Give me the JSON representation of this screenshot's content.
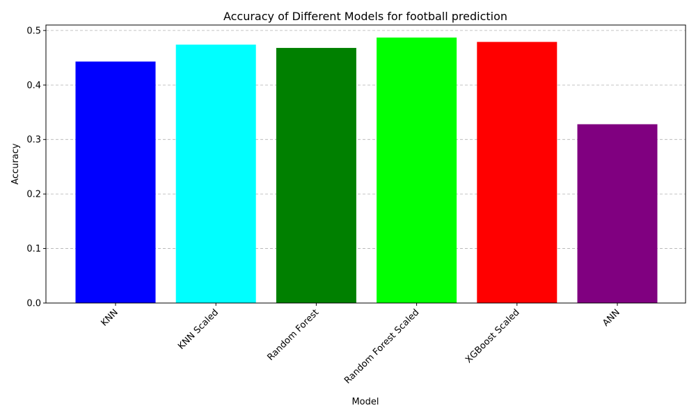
{
  "chart_data": {
    "type": "bar",
    "title": "Accuracy of Different Models for football prediction",
    "xlabel": "Model",
    "ylabel": "Accuracy",
    "categories": [
      "KNN",
      "KNN Scaled",
      "Random Forest",
      "Random Forest Scaled",
      "XGBoost Scaled",
      "ANN"
    ],
    "values": [
      0.443,
      0.474,
      0.468,
      0.487,
      0.479,
      0.328
    ],
    "colors": [
      "#0000ff",
      "#00ffff",
      "#008000",
      "#00ff00",
      "#ff0000",
      "#800080"
    ],
    "ylim": [
      0,
      0.51
    ],
    "yticks": [
      0.0,
      0.1,
      0.2,
      0.3,
      0.4,
      0.5
    ],
    "ytick_labels": [
      "0.0",
      "0.1",
      "0.2",
      "0.3",
      "0.4",
      "0.5"
    ],
    "grid": "y-dashed",
    "xtick_rotation": -45
  }
}
